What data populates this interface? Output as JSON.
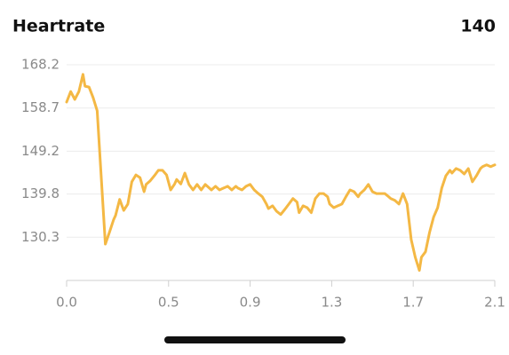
{
  "header": {
    "title": "Heartrate",
    "value": "140"
  },
  "chart_data": {
    "type": "line",
    "x": [
      0,
      0.02,
      0.04,
      0.06,
      0.08,
      0.09,
      0.11,
      0.13,
      0.15,
      0.17,
      0.19,
      0.21,
      0.23,
      0.24,
      0.26,
      0.28,
      0.3,
      0.32,
      0.34,
      0.36,
      0.38,
      0.39,
      0.41,
      0.43,
      0.45,
      0.47,
      0.49,
      0.51,
      0.53,
      0.54,
      0.56,
      0.58,
      0.6,
      0.62,
      0.64,
      0.66,
      0.68,
      0.69,
      0.71,
      0.73,
      0.75,
      0.77,
      0.79,
      0.81,
      0.83,
      0.84,
      0.86,
      0.88,
      0.9,
      0.92,
      0.94,
      0.96,
      0.98,
      0.99,
      1.01,
      1.03,
      1.05,
      1.07,
      1.09,
      1.11,
      1.13,
      1.14,
      1.16,
      1.18,
      1.2,
      1.22,
      1.24,
      1.26,
      1.28,
      1.29,
      1.31,
      1.33,
      1.35,
      1.37,
      1.39,
      1.41,
      1.43,
      1.44,
      1.46,
      1.48,
      1.5,
      1.52,
      1.54,
      1.56,
      1.58,
      1.59,
      1.61,
      1.63,
      1.65,
      1.67,
      1.69,
      1.71,
      1.73,
      1.74,
      1.76,
      1.78,
      1.8,
      1.82,
      1.84,
      1.86,
      1.88,
      1.89,
      1.91,
      1.93,
      1.95,
      1.97,
      1.99,
      2.01,
      2.03,
      2.04,
      2.06,
      2.08,
      2.1
    ],
    "series": [
      {
        "name": "Heartrate",
        "color": "#f4b844",
        "values": [
          160.0,
          162.3,
          160.6,
          162.3,
          166.1,
          163.5,
          163.3,
          161.0,
          158.1,
          143.4,
          128.8,
          131.4,
          134.1,
          135.1,
          138.6,
          136.2,
          137.6,
          142.5,
          144.0,
          143.4,
          140.3,
          141.9,
          142.7,
          143.8,
          145.0,
          145.0,
          144.0,
          140.7,
          142.0,
          143.0,
          142.0,
          144.4,
          141.9,
          140.7,
          141.9,
          140.7,
          141.9,
          141.5,
          140.7,
          141.5,
          140.7,
          141.1,
          141.5,
          140.7,
          141.5,
          141.1,
          140.7,
          141.5,
          141.9,
          140.7,
          139.9,
          139.2,
          137.6,
          136.6,
          137.2,
          136.0,
          135.3,
          136.4,
          137.6,
          138.8,
          138.0,
          135.7,
          137.2,
          136.8,
          135.7,
          138.8,
          139.9,
          139.9,
          139.2,
          137.6,
          136.8,
          137.2,
          137.6,
          139.2,
          140.7,
          140.3,
          139.2,
          139.9,
          140.7,
          141.9,
          140.3,
          139.9,
          139.9,
          139.9,
          139.2,
          138.8,
          138.4,
          137.6,
          139.9,
          137.6,
          129.8,
          125.9,
          123.0,
          125.9,
          127.1,
          131.4,
          134.7,
          136.8,
          141.1,
          143.8,
          145.0,
          144.4,
          145.4,
          145.0,
          144.2,
          145.4,
          142.5,
          143.8,
          145.4,
          145.8,
          146.2,
          145.8,
          146.2
        ]
      }
    ],
    "xlim": [
      0,
      2.1
    ],
    "xticks": [
      {
        "value": 0,
        "label": "0.0"
      },
      0.5,
      0.9,
      1.3,
      1.7,
      2.1
    ],
    "ylim": [
      120.8,
      168.2
    ],
    "yticks": [
      168.2,
      158.7,
      149.2,
      139.8,
      130.3
    ],
    "grid": true
  }
}
